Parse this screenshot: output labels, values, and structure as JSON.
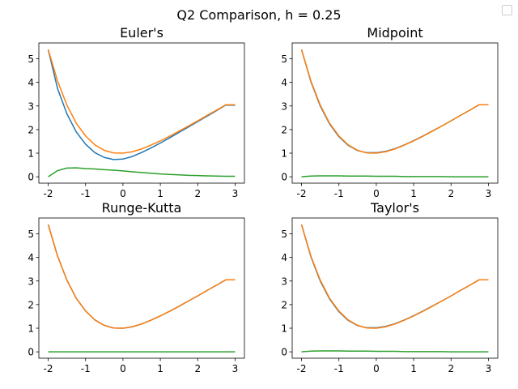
{
  "figure": {
    "suptitle": "Q2 Comparison, h = 0.25"
  },
  "colors": {
    "series1": "#1f77b4",
    "series2": "#ff7f0e",
    "series3": "#2ca02c"
  },
  "chart_data": [
    {
      "type": "line",
      "title": "Euler's",
      "xlim": [
        -2,
        3
      ],
      "ylim": [
        -0.27,
        5.67
      ],
      "xticks": [
        -2,
        -1,
        0,
        1,
        2,
        3
      ],
      "yticks": [
        0,
        1,
        2,
        3,
        4,
        5
      ],
      "x": [
        -2,
        -1.75,
        -1.5,
        -1.25,
        -1,
        -0.75,
        -0.5,
        -0.25,
        0,
        0.25,
        0.5,
        0.75,
        1,
        1.25,
        1.5,
        1.75,
        2,
        2.25,
        2.5,
        2.75,
        3
      ],
      "series": [
        {
          "values": [
            5.39,
            3.74,
            2.67,
            1.9,
            1.38,
            1.02,
            0.82,
            0.73,
            0.75,
            0.86,
            1.03,
            1.22,
            1.43,
            1.65,
            1.88,
            2.11,
            2.34,
            2.57,
            2.8,
            3.04,
            3.03
          ]
        },
        {
          "values": [
            5.39,
            4.06,
            3.04,
            2.27,
            1.73,
            1.35,
            1.12,
            1.01,
            1.0,
            1.06,
            1.18,
            1.34,
            1.52,
            1.72,
            1.93,
            2.15,
            2.37,
            2.6,
            2.82,
            3.05,
            3.05
          ]
        },
        {
          "values": [
            0.0,
            0.26,
            0.37,
            0.38,
            0.35,
            0.33,
            0.3,
            0.28,
            0.25,
            0.21,
            0.18,
            0.15,
            0.12,
            0.1,
            0.08,
            0.06,
            0.05,
            0.04,
            0.03,
            0.02,
            0.02
          ]
        }
      ]
    },
    {
      "type": "line",
      "title": "Midpoint",
      "xlim": [
        -2,
        3
      ],
      "ylim": [
        -0.27,
        5.67
      ],
      "xticks": [
        -2,
        -1,
        0,
        1,
        2,
        3
      ],
      "yticks": [
        0,
        1,
        2,
        3,
        4,
        5
      ],
      "x": [
        -2,
        -1.75,
        -1.5,
        -1.25,
        -1,
        -0.75,
        -0.5,
        -0.25,
        0,
        0.25,
        0.5,
        0.75,
        1,
        1.25,
        1.5,
        1.75,
        2,
        2.25,
        2.5,
        2.75,
        3
      ],
      "series": [
        {
          "values": [
            5.39,
            4.03,
            3.0,
            2.24,
            1.7,
            1.33,
            1.11,
            1.02,
            1.02,
            1.08,
            1.19,
            1.35,
            1.53,
            1.73,
            1.94,
            2.15,
            2.37,
            2.6,
            2.82,
            3.05,
            3.05
          ]
        },
        {
          "values": [
            5.39,
            4.06,
            3.04,
            2.27,
            1.73,
            1.35,
            1.12,
            1.01,
            1.0,
            1.06,
            1.18,
            1.34,
            1.52,
            1.72,
            1.93,
            2.15,
            2.37,
            2.6,
            2.82,
            3.05,
            3.05
          ]
        },
        {
          "values": [
            0.0,
            0.03,
            0.04,
            0.04,
            0.04,
            0.03,
            0.03,
            0.03,
            0.02,
            0.02,
            0.02,
            0.01,
            0.01,
            0.01,
            0.01,
            0.01,
            0.0,
            0.0,
            0.0,
            0.0,
            0.0
          ]
        }
      ]
    },
    {
      "type": "line",
      "title": "Runge-Kutta",
      "xlim": [
        -2,
        3
      ],
      "ylim": [
        -0.27,
        5.67
      ],
      "xticks": [
        -2,
        -1,
        0,
        1,
        2,
        3
      ],
      "yticks": [
        0,
        1,
        2,
        3,
        4,
        5
      ],
      "x": [
        -2,
        -1.75,
        -1.5,
        -1.25,
        -1,
        -0.75,
        -0.5,
        -0.25,
        0,
        0.25,
        0.5,
        0.75,
        1,
        1.25,
        1.5,
        1.75,
        2,
        2.25,
        2.5,
        2.75,
        3
      ],
      "series": [
        {
          "values": [
            5.39,
            4.06,
            3.04,
            2.27,
            1.73,
            1.35,
            1.12,
            1.01,
            1.0,
            1.06,
            1.18,
            1.34,
            1.52,
            1.72,
            1.93,
            2.15,
            2.37,
            2.6,
            2.82,
            3.05,
            3.05
          ]
        },
        {
          "values": [
            5.39,
            4.06,
            3.04,
            2.27,
            1.73,
            1.35,
            1.12,
            1.01,
            1.0,
            1.06,
            1.18,
            1.34,
            1.52,
            1.72,
            1.93,
            2.15,
            2.37,
            2.6,
            2.82,
            3.05,
            3.05
          ]
        },
        {
          "values": [
            0.0,
            0.0,
            0.0,
            0.0,
            0.0,
            0.0,
            0.0,
            0.0,
            0.0,
            0.0,
            0.0,
            0.0,
            0.0,
            0.0,
            0.0,
            0.0,
            0.0,
            0.0,
            0.0,
            0.0,
            0.0
          ]
        }
      ]
    },
    {
      "type": "line",
      "title": "Taylor's",
      "xlim": [
        -2,
        3
      ],
      "ylim": [
        -0.27,
        5.67
      ],
      "xticks": [
        -2,
        -1,
        0,
        1,
        2,
        3
      ],
      "yticks": [
        0,
        1,
        2,
        3,
        4,
        5
      ],
      "x": [
        -2,
        -1.75,
        -1.5,
        -1.25,
        -1,
        -0.75,
        -0.5,
        -0.25,
        0,
        0.25,
        0.5,
        0.75,
        1,
        1.25,
        1.5,
        1.75,
        2,
        2.25,
        2.5,
        2.75,
        3
      ],
      "series": [
        {
          "values": [
            5.39,
            4.03,
            3.0,
            2.24,
            1.7,
            1.33,
            1.11,
            1.02,
            1.02,
            1.08,
            1.19,
            1.35,
            1.53,
            1.73,
            1.94,
            2.15,
            2.37,
            2.6,
            2.82,
            3.05,
            3.05
          ]
        },
        {
          "values": [
            5.39,
            4.06,
            3.04,
            2.27,
            1.73,
            1.35,
            1.12,
            1.01,
            1.0,
            1.06,
            1.18,
            1.34,
            1.52,
            1.72,
            1.93,
            2.15,
            2.37,
            2.6,
            2.82,
            3.05,
            3.05
          ]
        },
        {
          "values": [
            0.0,
            0.03,
            0.04,
            0.04,
            0.04,
            0.03,
            0.03,
            0.03,
            0.02,
            0.02,
            0.02,
            0.01,
            0.01,
            0.01,
            0.01,
            0.01,
            0.0,
            0.0,
            0.0,
            0.0,
            0.0
          ]
        }
      ]
    }
  ]
}
